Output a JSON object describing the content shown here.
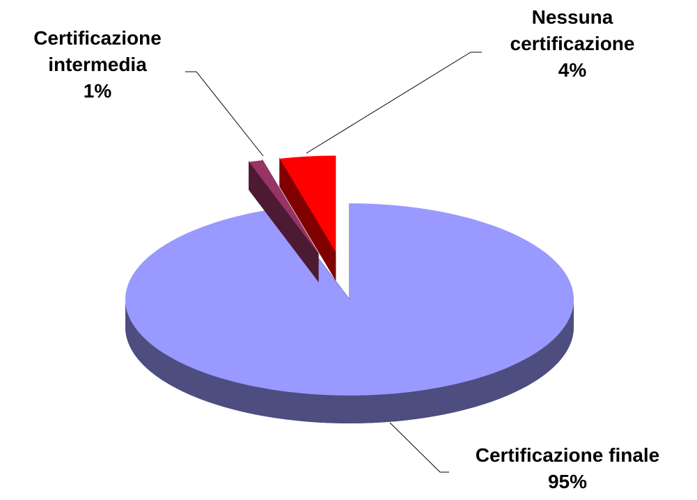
{
  "chart_data": {
    "type": "pie",
    "categories": [
      "Certificazione finale",
      "Certificazione intermedia",
      "Nessuna certificazione"
    ],
    "values": [
      95,
      1,
      4
    ],
    "value_labels": [
      "95%",
      "1%",
      "4%"
    ],
    "colors": [
      "#9999ff",
      "#993366",
      "#ff0000"
    ],
    "side_colors": [
      "#4d4d80",
      "#4d1a33",
      "#800000"
    ]
  }
}
